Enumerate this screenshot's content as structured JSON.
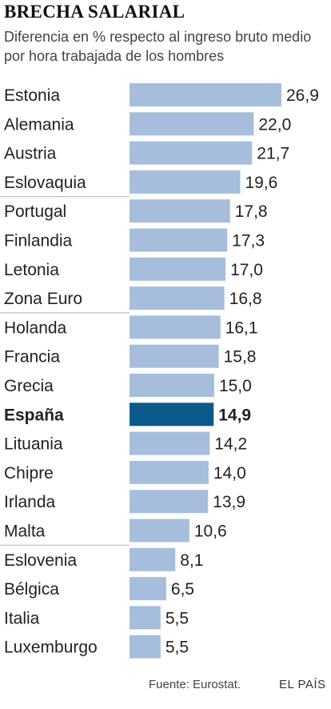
{
  "header": {
    "title": "BRECHA SALARIAL",
    "subtitle": "Diferencia en % respecto al ingreso bruto medio por hora trabajada de los hombres"
  },
  "colors": {
    "bar": "#a6bedc",
    "highlight_bar": "#0a5b8c",
    "divider": "#bbbbbb",
    "text": "#222222"
  },
  "chart_data": {
    "type": "bar",
    "orientation": "horizontal",
    "categories": [
      "Estonia",
      "Alemania",
      "Austria",
      "Eslovaquia",
      "Portugal",
      "Finlandia",
      "Letonia",
      "Zona Euro",
      "Holanda",
      "Francia",
      "Grecia",
      "España",
      "Lituania",
      "Chipre",
      "Irlanda",
      "Malta",
      "Eslovenia",
      "Bélgica",
      "Italia",
      "Luxemburgo"
    ],
    "values": [
      26.9,
      22.0,
      21.7,
      19.6,
      17.8,
      17.3,
      17.0,
      16.8,
      16.1,
      15.8,
      15.0,
      14.9,
      14.2,
      14.0,
      13.9,
      10.6,
      8.1,
      6.5,
      5.5,
      5.5
    ],
    "value_labels": [
      "26,9",
      "22,0",
      "21,7",
      "19,6",
      "17,8",
      "17,3",
      "17,0",
      "16,8",
      "16,1",
      "15,8",
      "15,0",
      "14,9",
      "14,2",
      "14,0",
      "13,9",
      "10,6",
      "8,1",
      "6,5",
      "5,5",
      "5,5"
    ],
    "highlight": "España",
    "title": "BRECHA SALARIAL",
    "xlabel": "",
    "ylabel": "",
    "xlim": [
      0,
      26.9
    ],
    "grid": false,
    "legend": "none"
  },
  "footer": {
    "source": "Fuente: Eurostat.",
    "brand": "EL PAÍS"
  }
}
